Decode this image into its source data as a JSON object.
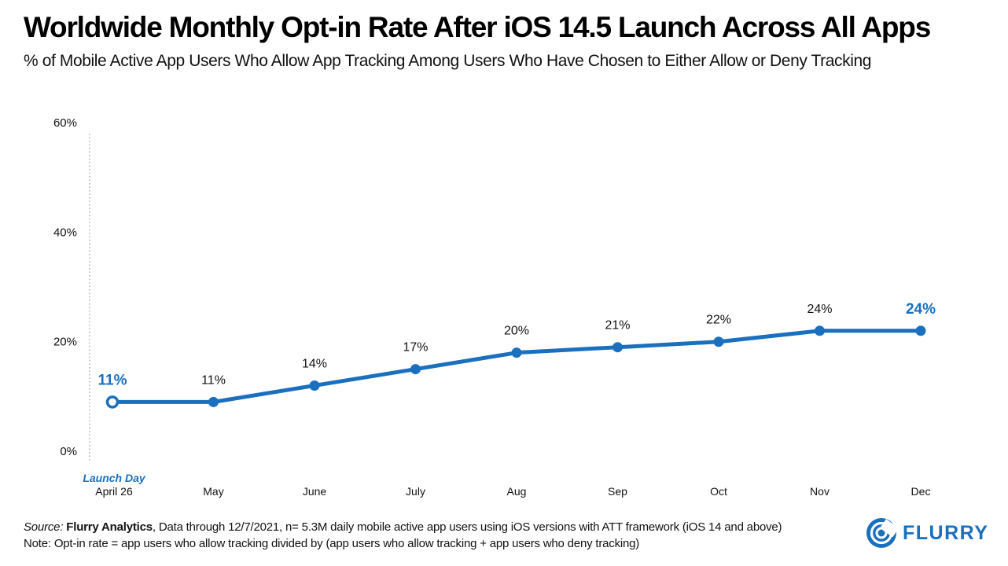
{
  "header": {
    "title": "Worldwide Monthly Opt-in Rate After iOS 14.5 Launch Across All Apps",
    "subtitle": "% of Mobile Active App Users Who Allow App Tracking Among Users Who Have Chosen to Either Allow or Deny Tracking"
  },
  "chart_data": {
    "type": "line",
    "title": "Worldwide Monthly Opt-in Rate After iOS 14.5 Launch Across All Apps",
    "subtitle": "% of Mobile Active App Users Who Allow App Tracking Among Users Who Have Chosen to Either Allow or Deny Tracking",
    "categories": [
      "April 26",
      "May",
      "June",
      "July",
      "Aug",
      "Sep",
      "Oct",
      "Nov",
      "Dec"
    ],
    "launch_label": "Launch Day",
    "values": [
      11,
      11,
      14,
      17,
      20,
      21,
      22,
      24,
      24
    ],
    "data_labels": [
      "11%",
      "11%",
      "14%",
      "17%",
      "20%",
      "21%",
      "22%",
      "24%",
      "24%"
    ],
    "yticks": [
      "0%",
      "20%",
      "40%",
      "60%"
    ],
    "ytick_values": [
      0,
      20,
      40,
      60
    ],
    "ylim": [
      0,
      60
    ],
    "grid": false,
    "colors": {
      "line": "#1a6fbf",
      "highlight": "#1a6fbf",
      "text": "#111111"
    }
  },
  "footer": {
    "source_label": "Source:",
    "source_name": "Flurry Analytics",
    "source_rest": ", Data through 12/7/2021, n= 5.3M daily mobile active app users using iOS versions with ATT framework (iOS 14 and above)",
    "note": "Note: Opt-in rate = app users who allow tracking divided by (app users who allow tracking + app users who deny tracking)"
  },
  "logo": {
    "text": "FLURRY",
    "icon": "flurry-logo-icon"
  }
}
